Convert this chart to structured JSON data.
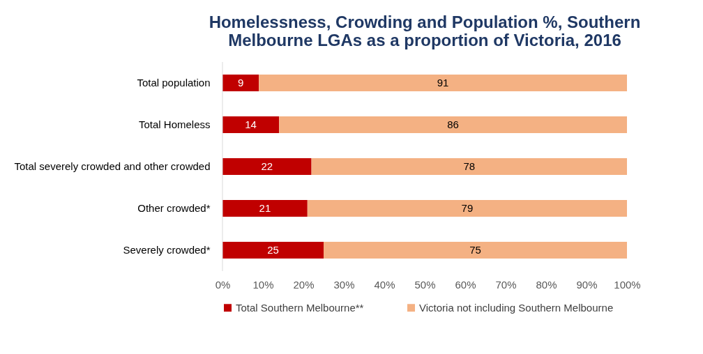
{
  "chart_data": {
    "type": "bar",
    "orientation": "horizontal",
    "stacked": true,
    "title": "Homelessness, Crowding and Population %, Southern Melbourne LGAs as a proportion of Victoria, 2016",
    "categories": [
      "Total population",
      "Total Homeless",
      "Total severely crowded and other crowded",
      "Other crowded*",
      "Severely crowded*"
    ],
    "series": [
      {
        "name": "Total Southern Melbourne**",
        "color": "#c00000",
        "values": [
          9,
          14,
          22,
          21,
          25
        ]
      },
      {
        "name": "Victoria not including Southern Melbourne",
        "color": "#f4b183",
        "values": [
          91,
          86,
          78,
          79,
          75
        ]
      }
    ],
    "xlim": [
      0,
      100
    ],
    "xticks": [
      {
        "value": 0,
        "label": "0%"
      },
      {
        "value": 10,
        "label": "10%"
      },
      {
        "value": 20,
        "label": "20%"
      },
      {
        "value": 30,
        "label": "30%"
      },
      {
        "value": 40,
        "label": "40%"
      },
      {
        "value": 50,
        "label": "50%"
      },
      {
        "value": 60,
        "label": "60%"
      },
      {
        "value": 70,
        "label": "70%"
      },
      {
        "value": 80,
        "label": "80%"
      },
      {
        "value": 90,
        "label": "90%"
      },
      {
        "value": 100,
        "label": "100%"
      }
    ],
    "data_labels": true,
    "legend": "bottom",
    "grid": false
  }
}
